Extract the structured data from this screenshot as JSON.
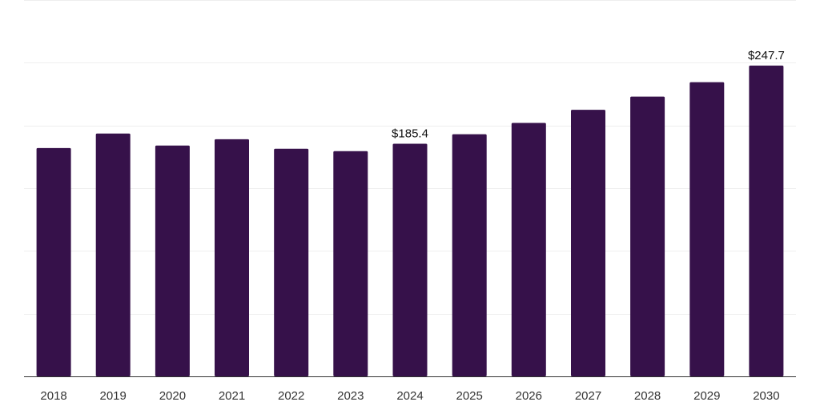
{
  "chart_data": {
    "type": "bar",
    "title": "",
    "xlabel": "",
    "ylabel": "",
    "categories": [
      "2018",
      "2019",
      "2020",
      "2021",
      "2022",
      "2023",
      "2024",
      "2025",
      "2026",
      "2027",
      "2028",
      "2029",
      "2030"
    ],
    "series": [
      {
        "values": [
          182,
          193.5,
          184,
          189,
          181.5,
          179.5,
          185.4,
          193,
          202,
          212.5,
          223,
          234.5,
          247.7
        ],
        "color": "#36114a"
      }
    ],
    "data_labels": [
      {
        "category": "2024",
        "text": "$185.4"
      },
      {
        "category": "2030",
        "text": "$247.7"
      }
    ],
    "ylim": [
      0,
      300
    ],
    "y_gridlines": [
      50,
      100,
      150,
      200,
      250,
      300
    ],
    "grid": true,
    "y_axis_labels_shown": false,
    "legend": "none"
  }
}
